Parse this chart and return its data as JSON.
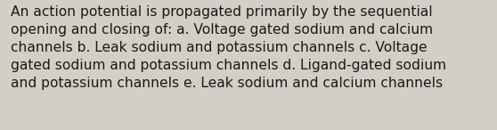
{
  "line1": "An action potential is propagated primarily by the sequential",
  "line2": "opening and closing of: a. Voltage gated sodium and calcium",
  "line3": "channels b. Leak sodium and potassium channels c. Voltage",
  "line4": "gated sodium and potassium channels d. Ligand-gated sodium",
  "line5": "and potassium channels e. Leak sodium and calcium channels",
  "background_color": "#d3cfc7",
  "text_color": "#1a1a1a",
  "font_size": 11.2,
  "fig_width": 5.58,
  "fig_height": 1.46,
  "dpi": 100
}
